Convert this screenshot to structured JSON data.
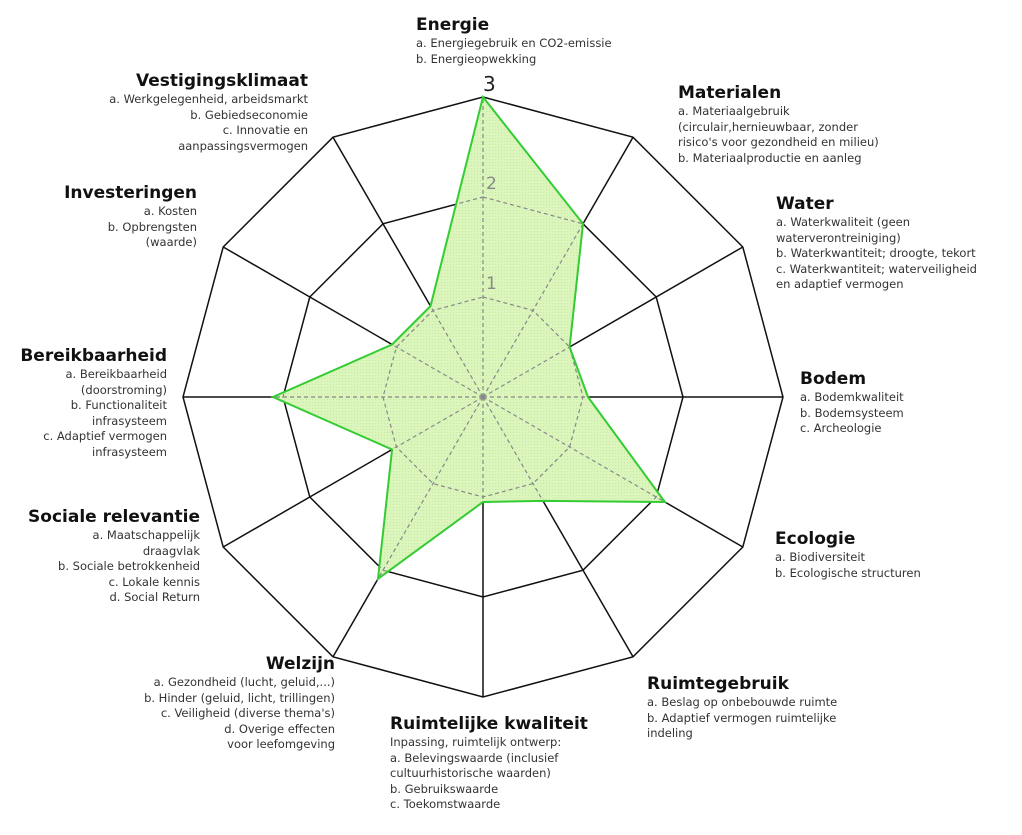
{
  "chart_data": {
    "type": "radar",
    "title": "",
    "rlim": [
      0,
      3
    ],
    "ticks": [
      "1",
      "2",
      "3"
    ],
    "fill_color": "#d6f2b0",
    "line_color": "#33cc33",
    "axes": [
      {
        "name": "Energie",
        "value": 3,
        "items": [
          "a. Energiegebruik en CO2-emissie",
          "b. Energieopwekking"
        ]
      },
      {
        "name": "Materialen",
        "value": 2,
        "items": [
          "a. Materiaalgebruik",
          "(circulair,hernieuwbaar, zonder",
          "risico's voor gezondheid en milieu)",
          "b. Materiaalproductie en aanleg"
        ]
      },
      {
        "name": "Water",
        "value": 1,
        "items": [
          "a. Waterkwaliteit (geen",
          "waterverontreiniging)",
          "b. Waterkwantiteit; droogte, tekort",
          "c.  Waterkwantiteit; waterveiligheid",
          "en adaptief vermogen"
        ]
      },
      {
        "name": "Bodem",
        "value": 1.05,
        "items": [
          "a. Bodemkwaliteit",
          "b. Bodemsysteem",
          "c. Archeologie"
        ]
      },
      {
        "name": "Ecologie",
        "value": 2.1,
        "items": [
          "a. Biodiversiteit",
          "b. Ecologische structuren"
        ]
      },
      {
        "name": "Ruimtegebruik",
        "value": 1.2,
        "items": [
          "a. Beslag op onbebouwde ruimte",
          "b. Adaptief vermogen ruimtelijke",
          "indeling"
        ]
      },
      {
        "name": "Ruimtelijke kwaliteit",
        "value": 1.05,
        "items": [
          "Inpassing, ruimtelijk ontwerp:",
          "a. Belevingswaarde (inclusief",
          "cultuurhistorische waarden)",
          "b. Gebruikswaarde",
          "c. Toekomstwaarde"
        ]
      },
      {
        "name": "Welzijn",
        "value": 2.1,
        "items": [
          "a. Gezondheid (lucht, geluid,...)",
          "b. Hinder (geluid, licht, trillingen)",
          "c. Veiligheid (diverse thema's)",
          "d. Overige effecten",
          "voor leefomgeving"
        ]
      },
      {
        "name": "Sociale relevantie",
        "value": 1.05,
        "items": [
          "a. Maatschappelijk",
          "draagvlak",
          "b. Sociale betrokkenheid",
          "c. Lokale kennis",
          "d. Social Return"
        ]
      },
      {
        "name": "Bereikbaarheid",
        "value": 2.1,
        "items": [
          "a. Bereikbaarheid",
          "(doorstroming)",
          "b. Functionaliteit",
          "infrasysteem",
          "c. Adaptief vermogen",
          "infrasysteem"
        ]
      },
      {
        "name": "Investeringen",
        "value": 1.05,
        "items": [
          "a. Kosten",
          "b. Opbrengsten",
          "(waarde)"
        ]
      },
      {
        "name": "Vestigingsklimaat",
        "value": 1.05,
        "items": [
          "a. Werkgelegenheid, arbeidsmarkt",
          "b. Gebiedseconomie",
          "c. Innovatie en",
          "aanpassingsvermogen"
        ]
      }
    ]
  }
}
